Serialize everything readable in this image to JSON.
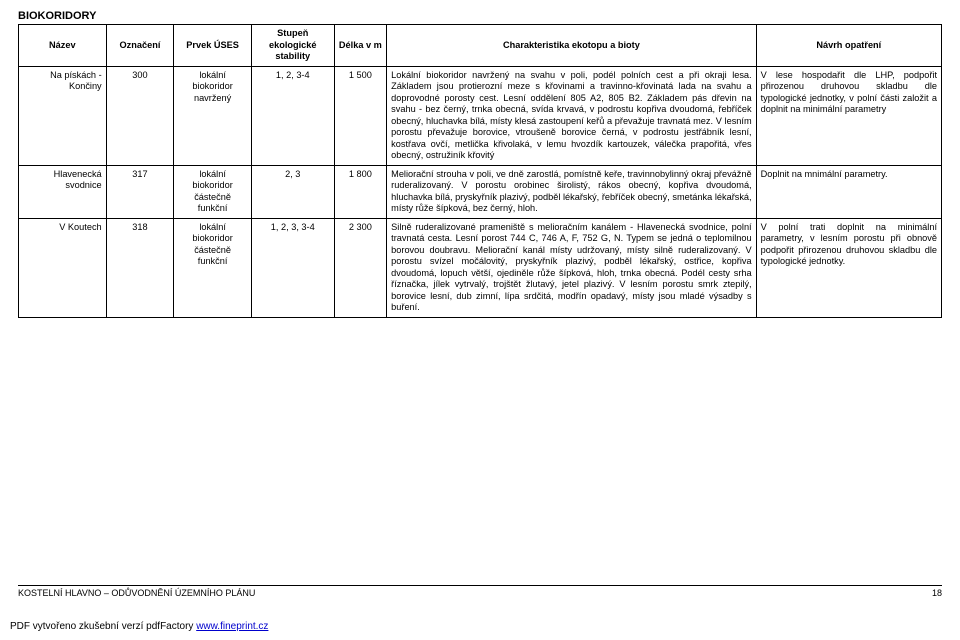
{
  "title": "BIOKORIDORY",
  "columns": {
    "nazev": "Název",
    "oznaceni": "Označení",
    "prvek": "Prvek ÚSES",
    "stupen": "Stupeň ekologické stability",
    "delka": "Délka v m",
    "charakteristika": "Charakteristika ekotopu a bioty",
    "navrh": "Návrh opatření"
  },
  "rows": [
    {
      "nazev": "Na pískách - Končiny",
      "oznaceni": "300",
      "prvek": "lokální biokoridor navržený",
      "stupen": "1, 2, 3-4",
      "delka": "1 500",
      "charakteristika": "Lokální biokoridor navržený na svahu v poli, podél polních cest a při okraji lesa. Základem jsou protierozní meze s křovinami a travinno-křovinatá lada na svahu a doprovodné porosty cest. Lesní oddělení 805 A2, 805 B2. Základem pás dřevin na svahu - bez černý, trnka obecná, svída krvavá, v podrostu kopřiva dvoudomá, řebříček obecný, hluchavka bílá, místy klesá zastoupení keřů a převažuje travnatá mez. V lesním porostu převažuje borovice, vtroušeně borovice černá, v podrostu jestřábník lesní, kostřava ovčí, metlička křivolaká, v lemu hvozdík kartouzek, válečka prapořitá, vřes obecný, ostružiník křovitý",
      "navrh": "V lese hospodařit dle LHP, podpořit přirozenou druhovou skladbu dle typologické jednotky, v polní části založit a doplnit na minimální parametry"
    },
    {
      "nazev": "Hlavenecká svodnice",
      "oznaceni": "317",
      "prvek": "lokální biokoridor částečně funkční",
      "stupen": "2, 3",
      "delka": "1 800",
      "charakteristika": "Meliorační strouha v poli, ve dně zarostlá, pomístně keře, travinnobylinný okraj převážně ruderalizovaný. V porostu orobinec širolistý, rákos obecný, kopřiva dvoudomá, hluchavka bílá, pryskyřník plazivý, podběl lékařský, řebříček obecný, smetánka lékařská, místy růže šípková, bez černý, hloh.",
      "navrh": "Doplnit na mnimální parametry."
    },
    {
      "nazev": "V Koutech",
      "oznaceni": "318",
      "prvek": "lokální biokoridor částečně funkční",
      "stupen": "1, 2, 3, 3-4",
      "delka": "2 300",
      "charakteristika": "Silně ruderalizované prameniště s melioračním kanálem - Hlavenecká svodnice, polní travnatá cesta. Lesní porost 744 C, 746 A, F, 752 G, N. Typem se jedná o teplomilnou borovou doubravu. Meliorační kanál místy udržovaný, místy silně ruderalizovaný. V porostu svízel močálovitý, pryskyřník plazivý, podběl lékařský, ostřice, kopřiva dvoudomá, lopuch větší, ojediněle růže šípková, hloh, trnka obecná. Podél cesty srha říznačka, jílek vytrvalý, trojštět žlutavý, jetel plazivý. V lesním porostu smrk ztepilý, borovice lesní, dub zimní, lípa srdčitá, modřín opadavý, místy jsou mladé výsadby s buření.",
      "navrh": "V polní trati doplnit na minimální parametry, v lesním porostu při obnově podpořit přirozenou druhovou skladbu dle typologické jednotky."
    }
  ],
  "footer": {
    "doc_title": "KOSTELNÍ HLAVNO – ODŮVODNĚNÍ ÚZEMNÍHO PLÁNU",
    "page_no": "18"
  },
  "pdf_credit": {
    "prefix": "PDF vytvořeno zkušební verzí pdfFactory ",
    "link_text": "www.fineprint.cz"
  }
}
